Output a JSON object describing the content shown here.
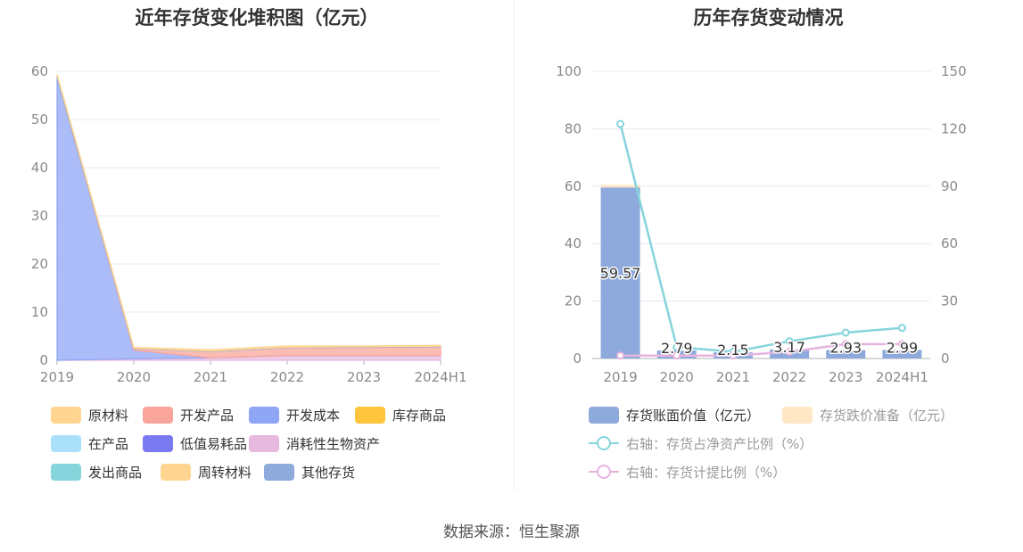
{
  "left_title": "近年存货变化堆积图（亿元）",
  "right_title": "历年存货变动情况",
  "source_text": "数据来源：恒生聚源",
  "chart_data": [
    {
      "type": "area",
      "title": "近年存货变化堆积图（亿元）",
      "x": [
        "2019",
        "2020",
        "2021",
        "2022",
        "2023",
        "2024H1"
      ],
      "ylim": [
        0,
        60
      ],
      "yticks": [
        "0",
        "10",
        "20",
        "30",
        "40",
        "50",
        "60"
      ],
      "grid": true,
      "legend_position": "bottom",
      "legend": [
        "原材料",
        "开发产品",
        "开发成本",
        "库存商品",
        "在产品",
        "低值易耗品",
        "消耗性生物资产",
        "发出商品",
        "周转材料",
        "其他存货"
      ],
      "series": [
        {
          "name": "消耗性生物资产",
          "color": "#e7b9df",
          "values": [
            0.0,
            0.3,
            0.5,
            1.0,
            1.0,
            1.0
          ]
        },
        {
          "name": "开发成本",
          "color": "#8fa5f5",
          "values": [
            58.5,
            1.8,
            0.0,
            0.0,
            0.0,
            0.0
          ]
        },
        {
          "name": "开发产品",
          "color": "#f9a59b",
          "values": [
            0.0,
            0.3,
            1.3,
            1.6,
            1.7,
            1.8
          ]
        },
        {
          "name": "其他存货",
          "color": "#8faadc",
          "values": [
            0.6,
            0.1,
            0.1,
            0.1,
            0.1,
            0.1
          ]
        },
        {
          "name": "周转材料",
          "color": "#ffd591",
          "values": [
            0.3,
            0.2,
            0.3,
            0.3,
            0.2,
            0.2
          ]
        }
      ]
    },
    {
      "type": "bar",
      "title": "历年存货变动情况",
      "categories": [
        "2019",
        "2020",
        "2021",
        "2022",
        "2023",
        "2024H1"
      ],
      "ylim": [
        0,
        100
      ],
      "yticks": [
        "0",
        "20",
        "40",
        "60",
        "80",
        "100"
      ],
      "y2lim": [
        0,
        150
      ],
      "y2ticks": [
        "0",
        "30",
        "60",
        "90",
        "120",
        "150"
      ],
      "grid": true,
      "legend_position": "bottom",
      "bar_series": [
        {
          "name": "存货账面价值（亿元）",
          "color": "#8eaadc",
          "values": [
            59.57,
            2.79,
            2.15,
            3.17,
            2.93,
            2.99
          ],
          "labels": [
            "59.57",
            "2.79",
            "2.15",
            "3.17",
            "2.93",
            "2.99"
          ]
        },
        {
          "name": "存货跌价准备（亿元）",
          "color": "#ffe6c4",
          "values": [
            0.9,
            0.05,
            0.05,
            0.05,
            0.05,
            0.05
          ]
        }
      ],
      "line_series": [
        {
          "name": "右轴：存货占净资产比例（%）",
          "color": "#86d4dc",
          "values": [
            122.5,
            6.0,
            3.5,
            9.0,
            13.5,
            16.0
          ]
        },
        {
          "name": "右轴：存货计提比例（%）",
          "color": "#e6b3de",
          "values": [
            1.5,
            1.5,
            1.5,
            3.5,
            7.5,
            7.5
          ]
        }
      ]
    }
  ],
  "left_legend": [
    {
      "label": "原材料",
      "color": "#ffd591"
    },
    {
      "label": "开发产品",
      "color": "#f9a59b"
    },
    {
      "label": "开发成本",
      "color": "#8fa5f5"
    },
    {
      "label": "库存商品",
      "color": "#ffc53d"
    },
    {
      "label": "在产品",
      "color": "#abe0fa"
    },
    {
      "label": "低值易耗品",
      "color": "#7a7af0"
    },
    {
      "label": "消耗性生物资产",
      "color": "#e7b9df"
    },
    {
      "label": "发出商品",
      "color": "#86d4dc"
    },
    {
      "label": "周转材料",
      "color": "#ffd591"
    },
    {
      "label": "其他存货",
      "color": "#8faadc"
    }
  ],
  "right_legend": [
    {
      "label": "存货账面价值（亿元）",
      "color": "#8eaadc",
      "kind": "box"
    },
    {
      "label": "存货跌价准备（亿元）",
      "color": "#ffe6c4",
      "kind": "box"
    },
    {
      "label": "右轴：存货占净资产比例（%）",
      "color": "#86d4dc",
      "kind": "line"
    },
    {
      "label": "右轴：存货计提比例（%）",
      "color": "#e6b3de",
      "kind": "line"
    }
  ]
}
